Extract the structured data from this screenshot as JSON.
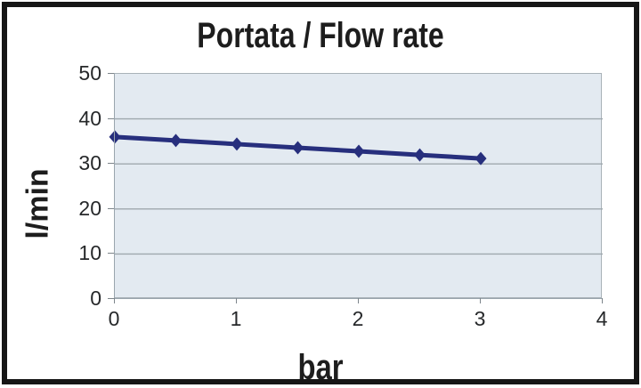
{
  "chart_data": {
    "type": "line",
    "title": "Portata / Flow rate",
    "xlabel": "bar",
    "ylabel": "l/min",
    "x": [
      0,
      0.5,
      1,
      1.5,
      2,
      2.5,
      3
    ],
    "series": [
      {
        "name": "Portata / Flow rate",
        "values": [
          36,
          35.2,
          34.4,
          33.6,
          32.8,
          32.0,
          31.2
        ]
      }
    ],
    "xlim": [
      0,
      4
    ],
    "ylim": [
      0,
      50
    ],
    "x_ticks": [
      0,
      1,
      2,
      3,
      4
    ],
    "y_ticks": [
      0,
      10,
      20,
      30,
      40,
      50
    ],
    "grid": true,
    "legend": false,
    "marker": "diamond",
    "colors": {
      "line": "#272f7d",
      "plot_background": "#e3eaf1",
      "gridline": "#9fa8ae",
      "axis": "#9aa5ad",
      "text": "#26282a",
      "title_text": "#1d1d1d",
      "frame_border": "#161616",
      "page_background": "#ffffff"
    }
  }
}
